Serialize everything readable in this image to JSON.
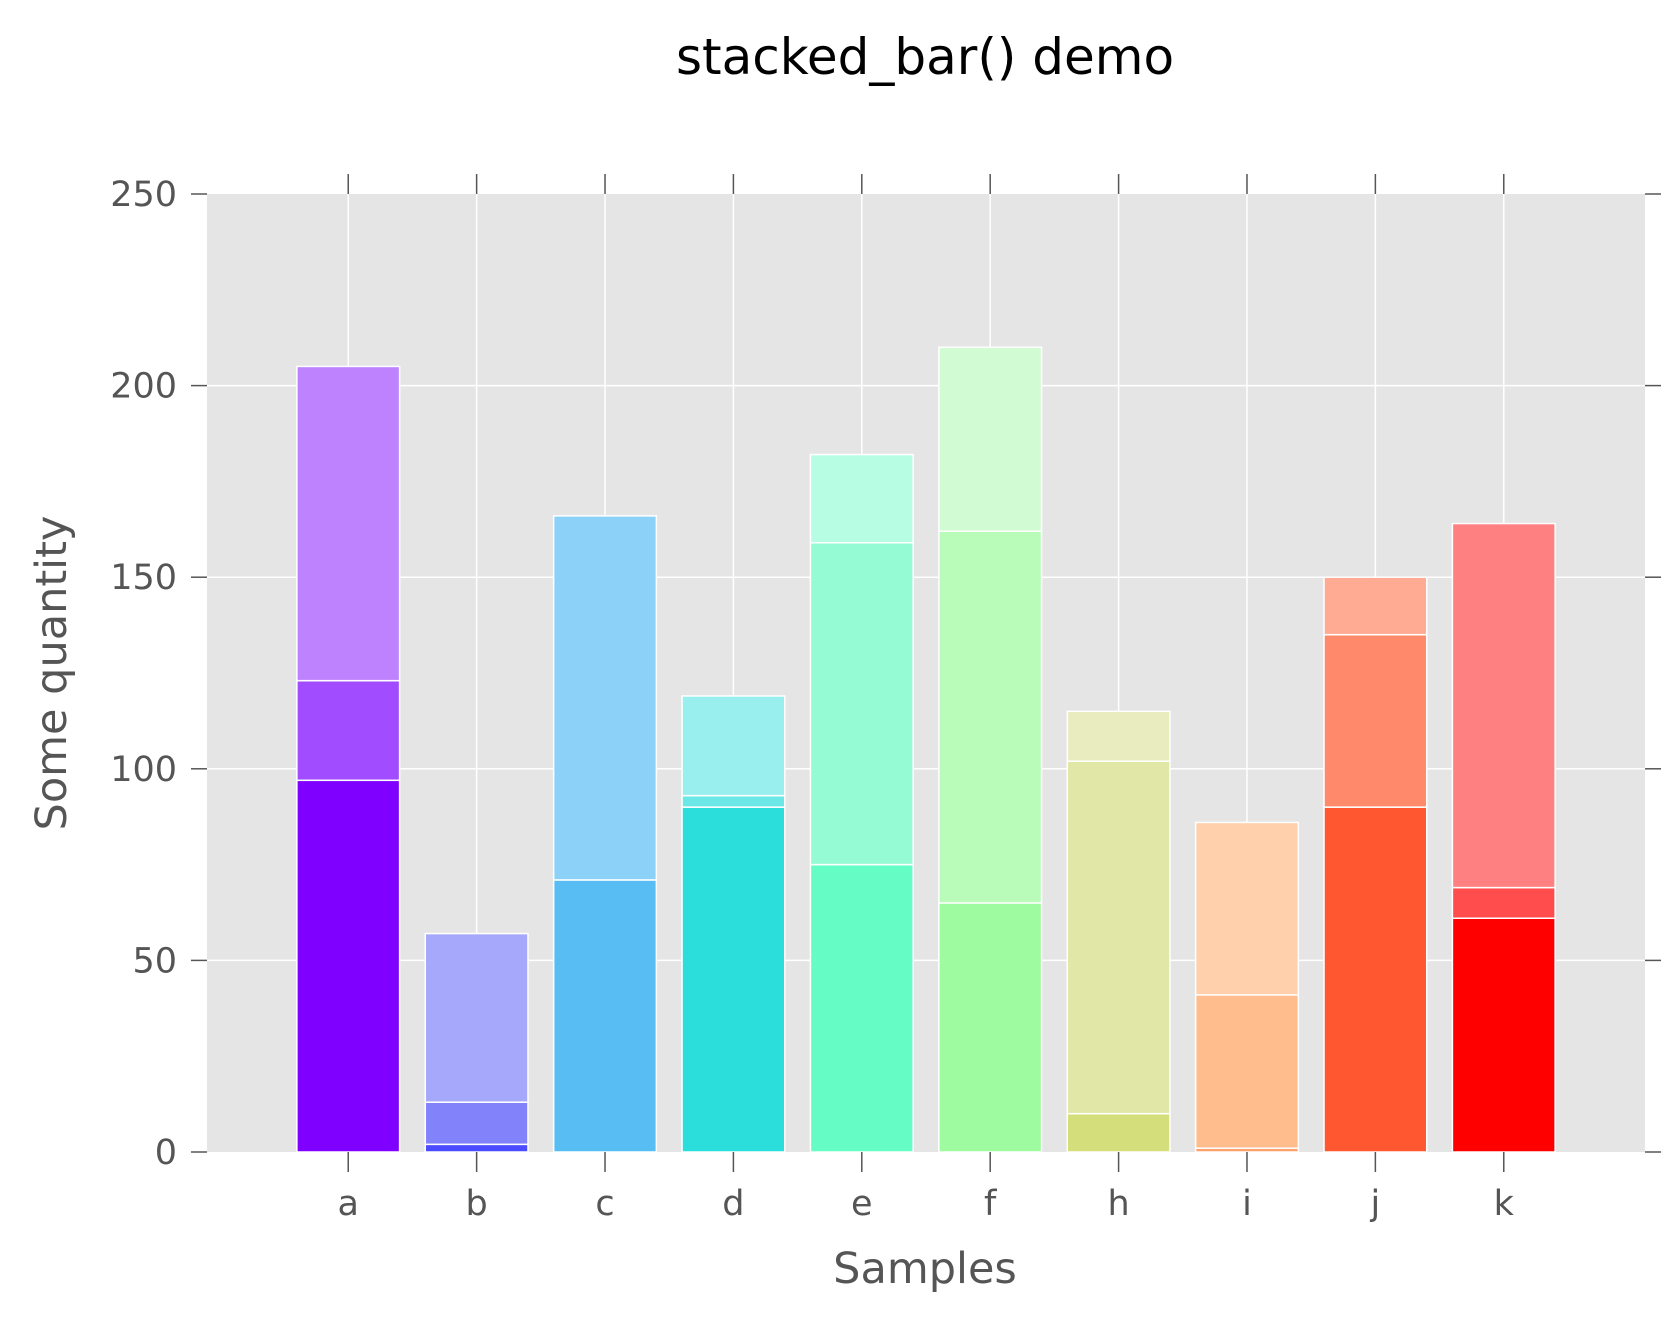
{
  "chart_data": {
    "type": "bar",
    "stacked": true,
    "title": "stacked_bar() demo",
    "xlabel": "Samples",
    "ylabel": "Some quantity",
    "ylim": [
      0,
      250
    ],
    "yticks": [
      0,
      50,
      100,
      150,
      200,
      250
    ],
    "grid": true,
    "categories": [
      "a",
      "b",
      "c",
      "d",
      "e",
      "f",
      "h",
      "i",
      "j",
      "k"
    ],
    "stacks": [
      {
        "category": "a",
        "segments": [
          {
            "value": 97,
            "color": "#8000ff"
          },
          {
            "value": 26,
            "color": "#a24cff"
          },
          {
            "value": 82,
            "color": "#bf82ff"
          }
        ]
      },
      {
        "category": "b",
        "segments": [
          {
            "value": 2,
            "color": "#4b4bff"
          },
          {
            "value": 11,
            "color": "#8282fb"
          },
          {
            "value": 44,
            "color": "#a5a8fb"
          }
        ]
      },
      {
        "category": "c",
        "segments": [
          {
            "value": 71,
            "color": "#58bdf3"
          },
          {
            "value": 95,
            "color": "#8bd1f8"
          }
        ]
      },
      {
        "category": "d",
        "segments": [
          {
            "value": 90,
            "color": "#2bdedc"
          },
          {
            "value": 3,
            "color": "#6be8e6"
          },
          {
            "value": 26,
            "color": "#99eeee"
          }
        ]
      },
      {
        "category": "e",
        "segments": [
          {
            "value": 75,
            "color": "#66fcc5"
          },
          {
            "value": 84,
            "color": "#95fbd5"
          },
          {
            "value": 23,
            "color": "#b7fde3"
          }
        ]
      },
      {
        "category": "f",
        "segments": [
          {
            "value": 65,
            "color": "#9ffb9f"
          },
          {
            "value": 97,
            "color": "#b9fbb9"
          },
          {
            "value": 48,
            "color": "#d1fcd3"
          }
        ]
      },
      {
        "category": "h",
        "segments": [
          {
            "value": 10,
            "color": "#d4df7b"
          },
          {
            "value": 92,
            "color": "#e1e7a7"
          },
          {
            "value": 13,
            "color": "#e8ecbe"
          }
        ]
      },
      {
        "category": "i",
        "segments": [
          {
            "value": 1,
            "color": "#fea06a"
          },
          {
            "value": 40,
            "color": "#ffbc8c"
          },
          {
            "value": 45,
            "color": "#ffd0ab"
          }
        ]
      },
      {
        "category": "j",
        "segments": [
          {
            "value": 90,
            "color": "#ff5830"
          },
          {
            "value": 45,
            "color": "#ff8a6b"
          },
          {
            "value": 15,
            "color": "#ffab93"
          }
        ]
      },
      {
        "category": "k",
        "segments": [
          {
            "value": 61,
            "color": "#ff0000"
          },
          {
            "value": 8,
            "color": "#ff4c4c"
          },
          {
            "value": 95,
            "color": "#ff8080"
          }
        ]
      }
    ],
    "colors": {
      "plot_background": "#e5e5e5",
      "grid": "#ffffff",
      "bar_edge": "#ffffff",
      "tick_mark": "#555555"
    }
  }
}
